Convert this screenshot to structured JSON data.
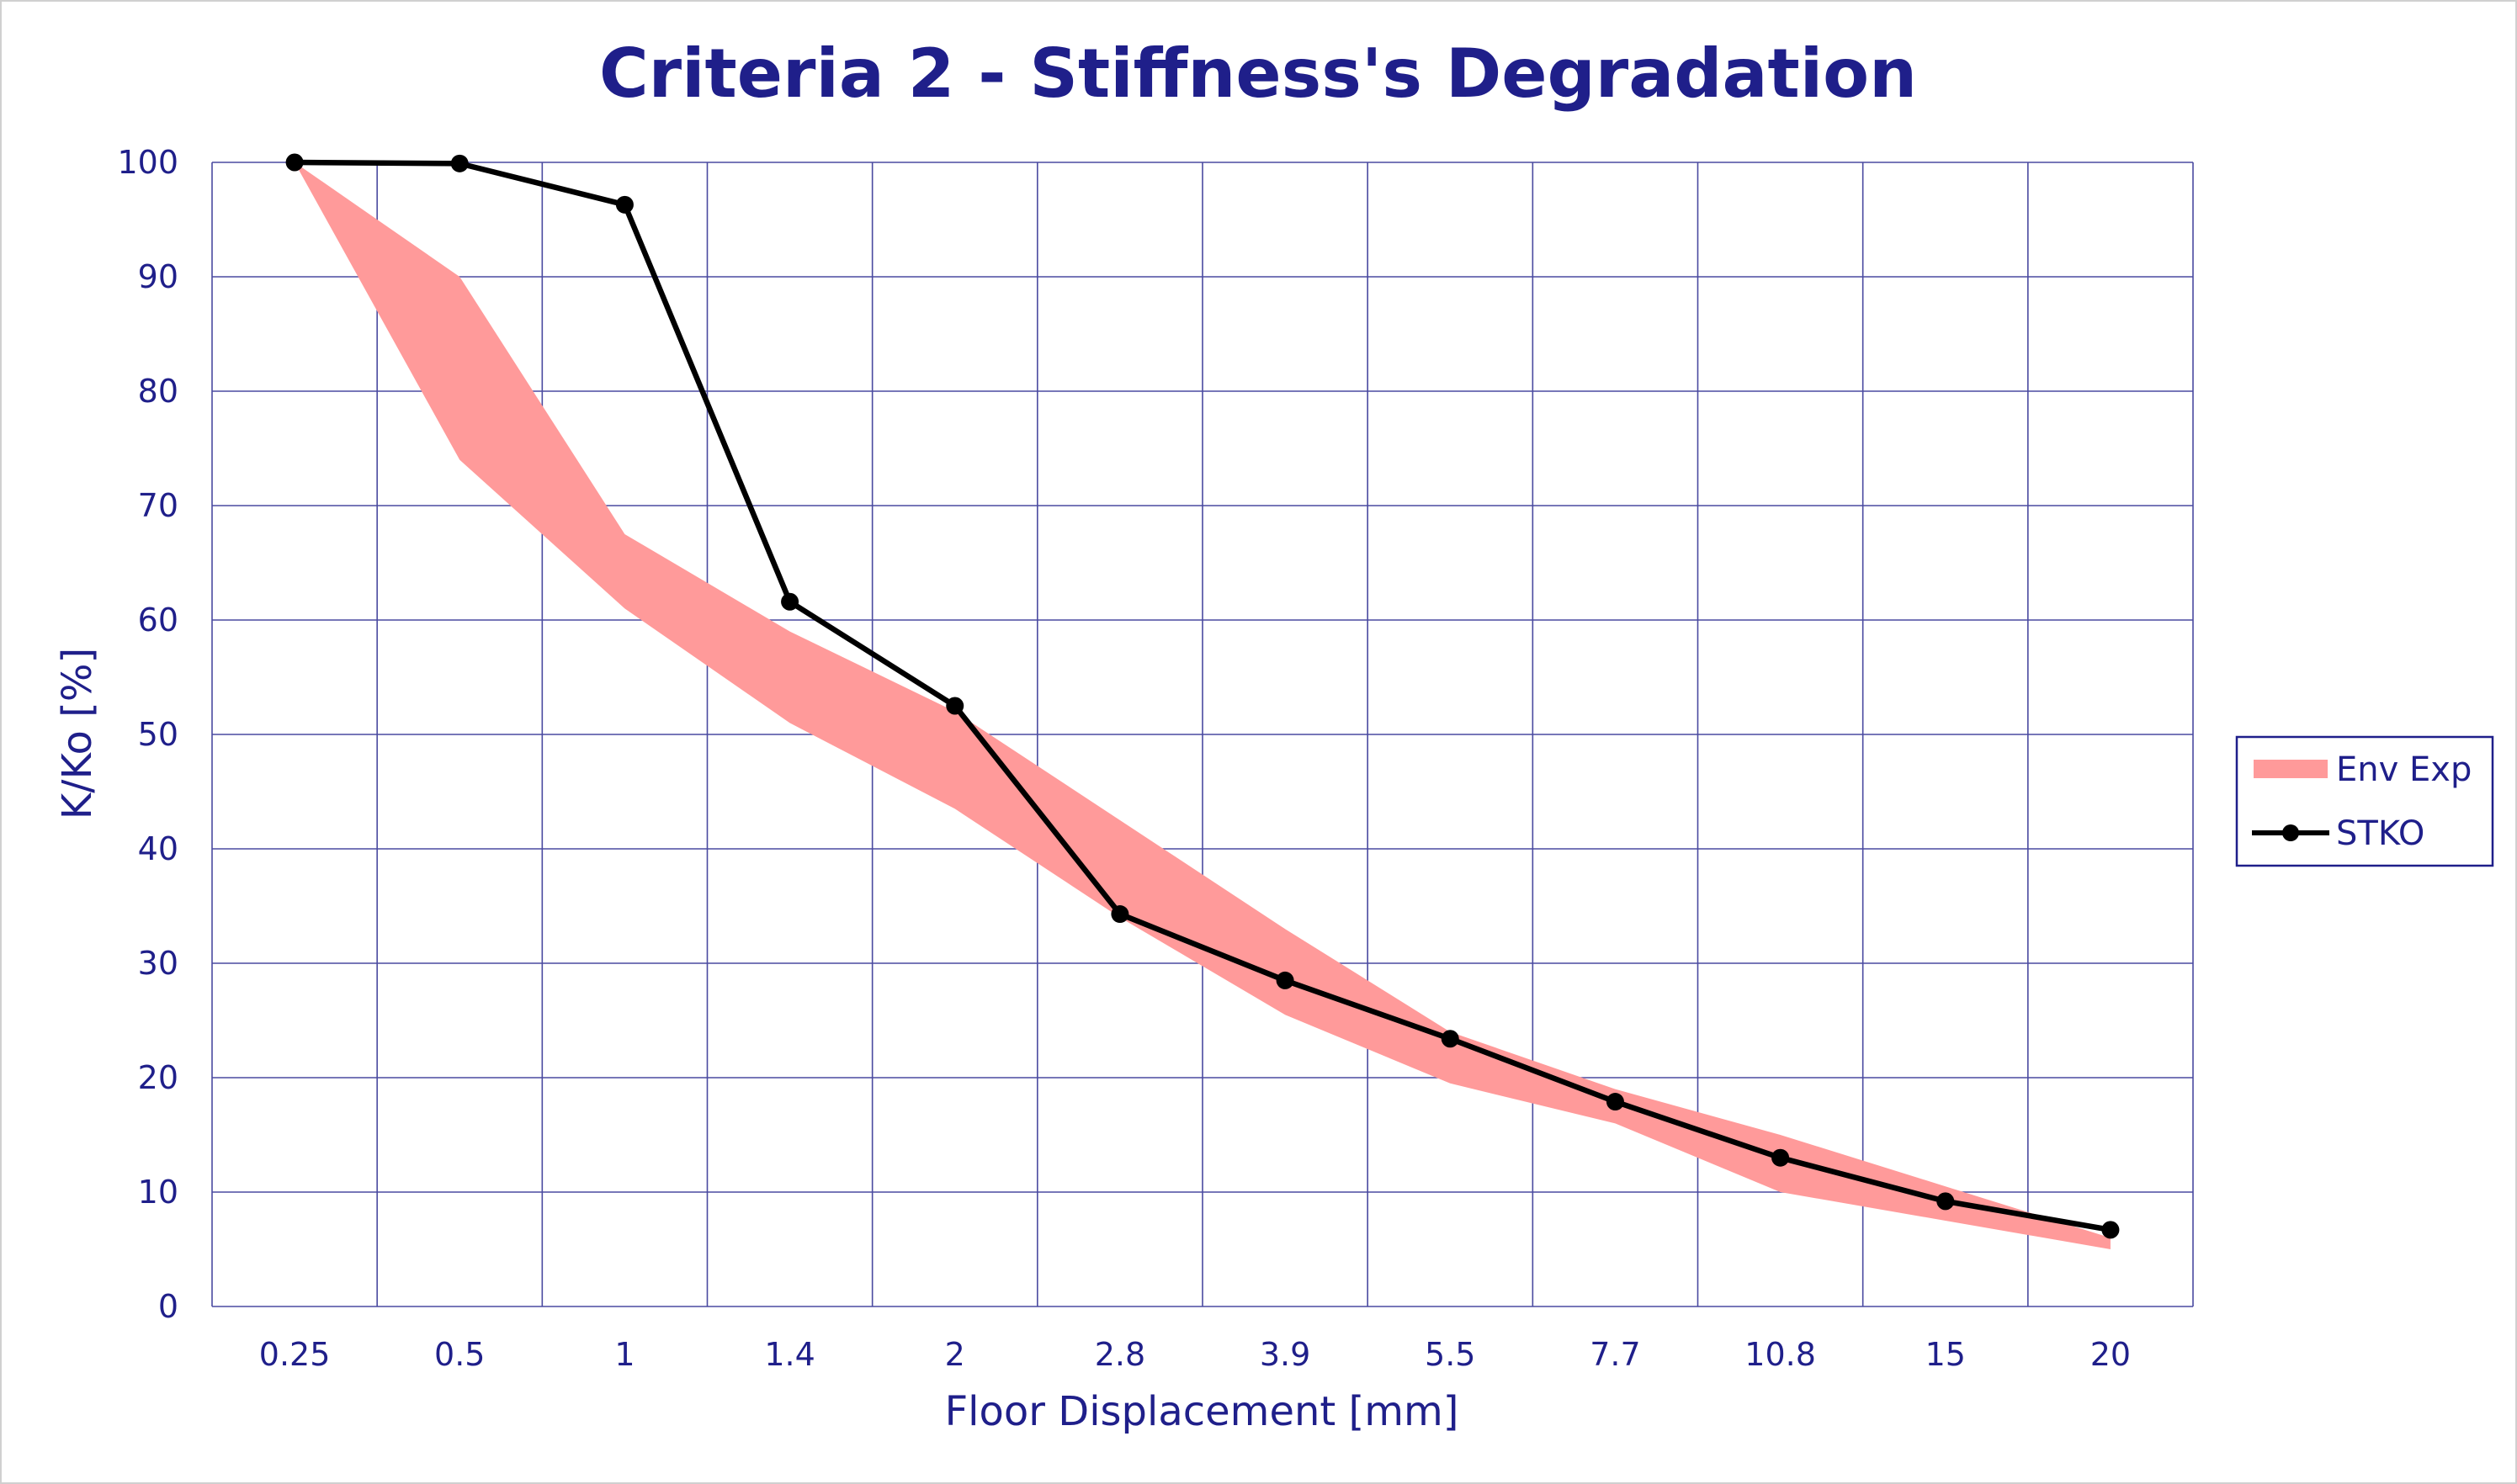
{
  "chart_data": {
    "type": "line",
    "title": "Criteria 2 - Stiffness's Degradation",
    "xlabel": "Floor Displacement [mm]",
    "ylabel": "K/Ko [%]",
    "categories": [
      "0.25",
      "0.5",
      "1",
      "1.4",
      "2",
      "2.8",
      "3.9",
      "5.5",
      "7.7",
      "10.8",
      "15",
      "20"
    ],
    "ylim": [
      0,
      100
    ],
    "yticks": [
      "0",
      "10",
      "20",
      "30",
      "40",
      "50",
      "60",
      "70",
      "80",
      "90",
      "100"
    ],
    "grid": true,
    "legend_position": "right",
    "band": {
      "name": "Env Exp",
      "upper": [
        100,
        90,
        67.5,
        59,
        52,
        42.5,
        33,
        24,
        19,
        15,
        10.5,
        6
      ],
      "lower": [
        100,
        74,
        61,
        51,
        43.5,
        34,
        25.5,
        19.5,
        16,
        10,
        7.5,
        5
      ]
    },
    "series": [
      {
        "name": "STKO",
        "values": [
          100,
          99.9,
          96.3,
          61.6,
          52.5,
          34.3,
          28.5,
          23.4,
          17.9,
          13,
          9.2,
          6.7
        ]
      }
    ],
    "colors": {
      "band": "#ff9a9a",
      "line": "#000000",
      "text": "#1f1f8a",
      "grid": "#4a4aa0"
    }
  }
}
